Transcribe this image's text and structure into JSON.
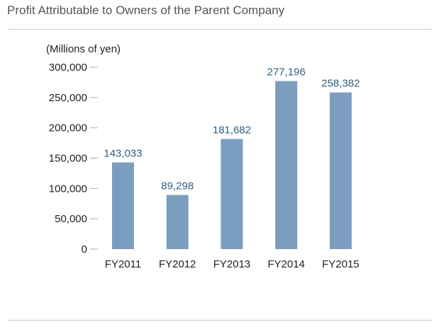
{
  "page": {
    "title": "Profit Attributable to Owners of the Parent Company"
  },
  "chart_data": {
    "type": "bar",
    "title": "Profit Attributable to Owners of the Parent Company",
    "ylabel": "(Millions of yen)",
    "xlabel": "",
    "categories": [
      "FY2011",
      "FY2012",
      "FY2013",
      "FY2014",
      "FY2015"
    ],
    "values": [
      143033,
      89298,
      181682,
      277196,
      258382
    ],
    "value_labels": [
      "143,033",
      "89,298",
      "181,682",
      "277,196",
      "258,382"
    ],
    "yticks": [
      0,
      50000,
      100000,
      150000,
      200000,
      250000,
      300000
    ],
    "ytick_labels": [
      "0",
      "50,000",
      "100,000",
      "150,000",
      "200,000",
      "250,000",
      "300,000"
    ],
    "ylim": [
      0,
      300000
    ],
    "grid": false,
    "legend": "none",
    "bar_color": "#7b9ec0",
    "label_color": "#2f5f7f"
  }
}
